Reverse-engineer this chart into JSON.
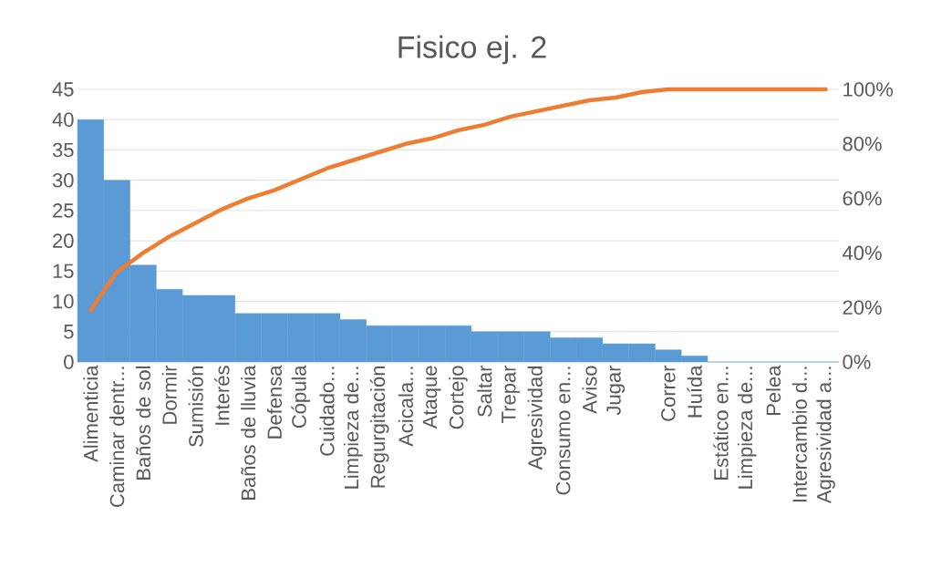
{
  "chart_data": {
    "type": "bar",
    "title": "Fisico ej. 2",
    "categories": [
      "Alimenticia",
      "Caminar dentr...",
      "Baños de sol",
      "Dormir",
      "Sumisión",
      "Interés",
      "Baños de lluvia",
      "Defensa",
      "Cópula",
      "Cuidado...",
      "Limpieza de...",
      "Regurgitación",
      "Acicala...",
      "Ataque",
      "Cortejo",
      "Saltar",
      "Trepar",
      "Agresividad",
      "Consumo en...",
      "Aviso",
      "Jugar",
      null,
      "Correr",
      "Huída",
      "Estático en...",
      "Limpieza de...",
      "Pelea",
      "Intercambio d...",
      "Agresividad a..."
    ],
    "series": [
      {
        "color": "#5b9bd5",
        "values": [
          40,
          30,
          16,
          12,
          11,
          11,
          8,
          8,
          8,
          8,
          7,
          6,
          6,
          6,
          6,
          5,
          5,
          5,
          4,
          4,
          3,
          3,
          2,
          1,
          0,
          0,
          0,
          0,
          0
        ]
      },
      {
        "type": "line",
        "axis": "y2",
        "color": "#ed7d31",
        "values": [
          19,
          33,
          40,
          46,
          51,
          56,
          60,
          63,
          67,
          71,
          74,
          77,
          80,
          82,
          85,
          87,
          90,
          92,
          94,
          96,
          97,
          99,
          100,
          100,
          100,
          100,
          100,
          100,
          100
        ]
      }
    ],
    "ylim": [
      0,
      45
    ],
    "yticks": [
      0,
      5,
      10,
      15,
      20,
      25,
      30,
      35,
      40,
      45
    ],
    "y2lim": [
      0,
      100
    ],
    "y2ticks": [
      {
        "value": 0,
        "label": "0%"
      },
      {
        "value": 20,
        "label": "20%"
      },
      {
        "value": 40,
        "label": "40%"
      },
      {
        "value": 60,
        "label": "60%"
      },
      {
        "value": 80,
        "label": "80%"
      },
      {
        "value": 100,
        "label": "100%"
      }
    ],
    "grid": "y"
  }
}
